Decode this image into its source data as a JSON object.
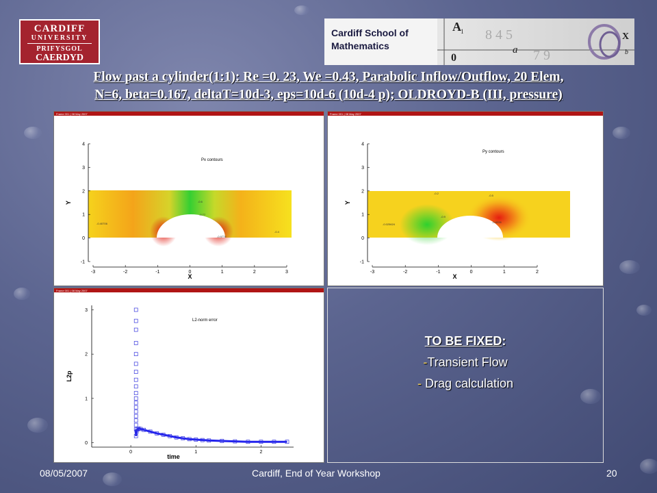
{
  "logos": {
    "university": {
      "line1": "CARDIFF",
      "line2": "UNIVERSITY",
      "line3": "PRIFYSGOL",
      "line4": "CAERDYD"
    },
    "school": {
      "line1": "Cardiff School of",
      "line2": "Mathematics"
    }
  },
  "title": {
    "line1": "Flow past a cylinder(1:1): Re =0. 23, We =0.43, Parabolic Inflow/Outflow, 20 Elem,",
    "line2": "N=6, beta=0.167, deltaT=10d-3, eps=10d-6 (10d-4 p); OLDROYD-B (III, pressure)"
  },
  "plots": {
    "frame_label": "Frame 001 | 08 May 2007",
    "px": {
      "title": "Px contours",
      "xlabel": "X",
      "ylabel": "Y",
      "xticks": [
        "-3",
        "-2",
        "-1",
        "0",
        "1",
        "2",
        "3"
      ],
      "yticks": [
        "-1",
        "0",
        "1",
        "2",
        "3",
        "4"
      ],
      "contour_labels": [
        "-0.40706",
        "-0.9774",
        "-0.6",
        "-0.77",
        "-0.4"
      ],
      "colors": {
        "high": "#e61e10",
        "mid": "#f7c21a",
        "low": "#2ed12e"
      }
    },
    "py": {
      "title": "Py contours",
      "xlabel": "X",
      "ylabel": "Y",
      "xticks": [
        "-3",
        "-2",
        "-1",
        "0",
        "1",
        "2"
      ],
      "yticks": [
        "-1",
        "0",
        "1",
        "2",
        "3",
        "4"
      ],
      "contour_labels": [
        "-0.025624",
        "-0.8228",
        "-0.2",
        "-0.5",
        "-0.9"
      ],
      "colors": {
        "high": "#e61e10",
        "mid": "#f7c21a",
        "low": "#2ed12e"
      }
    },
    "l2": {
      "title": "L2-norm error",
      "xlabel": "time",
      "ylabel": "L2p",
      "xticks": [
        "0",
        "1",
        "2"
      ],
      "yticks": [
        "0",
        "1",
        "2",
        "3"
      ]
    }
  },
  "chart_data": {
    "type": "scatter",
    "title": "L2-norm error",
    "xlabel": "time",
    "ylabel": "L2p",
    "xlim": [
      -0.6,
      2.5
    ],
    "ylim": [
      -0.1,
      3.1
    ],
    "series": [
      {
        "x": [
          0.08,
          0.08,
          0.08,
          0.08,
          0.08,
          0.08,
          0.08,
          0.08,
          0.08,
          0.08,
          0.08,
          0.08,
          0.08,
          0.08,
          0.08,
          0.08,
          0.08,
          0.08,
          0.08,
          0.09,
          0.1,
          0.12,
          0.15,
          0.2,
          0.3,
          0.4,
          0.5,
          0.6,
          0.7,
          0.8,
          0.9,
          1.0,
          1.1,
          1.2,
          1.4,
          1.6,
          1.8,
          2.0,
          2.2,
          2.4
        ],
        "y": [
          3.0,
          2.75,
          2.55,
          2.25,
          2.0,
          1.78,
          1.6,
          1.42,
          1.27,
          1.12,
          1.0,
          0.9,
          0.8,
          0.7,
          0.6,
          0.5,
          0.4,
          0.3,
          0.15,
          0.25,
          0.3,
          0.32,
          0.31,
          0.29,
          0.25,
          0.21,
          0.18,
          0.15,
          0.12,
          0.1,
          0.08,
          0.07,
          0.06,
          0.05,
          0.04,
          0.03,
          0.02,
          0.02,
          0.02,
          0.02
        ]
      }
    ]
  },
  "todo": {
    "heading": "TO BE FIXED",
    "heading_suffix": ":",
    "item1_dash": "-",
    "item1": "Transient Flow",
    "item2_dash": "-",
    "item2": " Drag calculation"
  },
  "footer": {
    "date": "08/05/2007",
    "center": "Cardiff,  End of Year Workshop",
    "page": "20"
  }
}
